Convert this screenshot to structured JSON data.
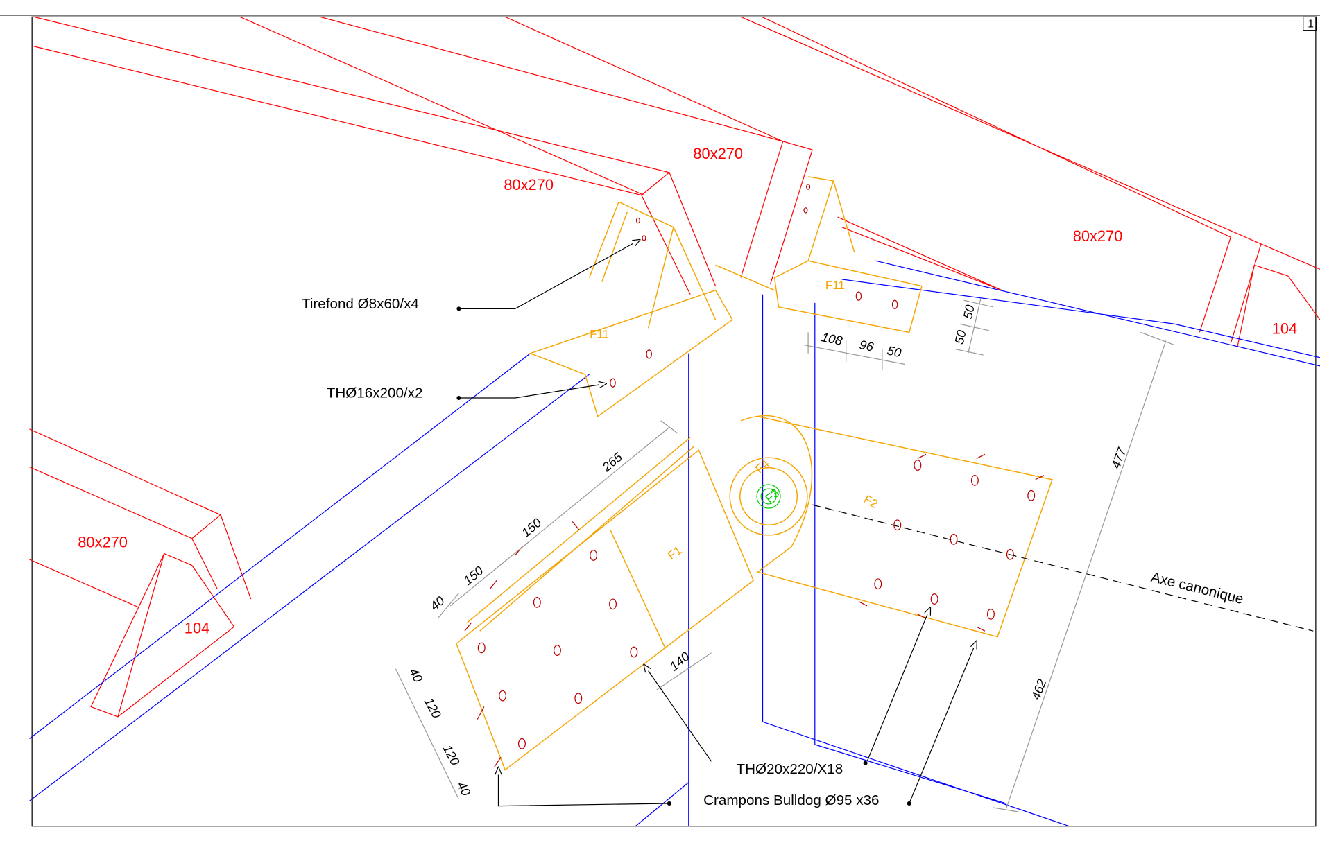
{
  "sheet_number": "1",
  "section_labels": [
    "80x270",
    "80x270",
    "80x270",
    "80x270",
    "104",
    "104"
  ],
  "parts": [
    "F11",
    "F11",
    "F1",
    "F2",
    "F3",
    "F4"
  ],
  "annotations": [
    "Tirefond Ø8x60/x4",
    "THØ16x200/x2",
    "THØ20x220/X18",
    "Crampons Bulldog Ø95 x36",
    "Axe canonique"
  ],
  "dimensions": [
    108,
    96,
    50,
    50,
    50,
    477,
    462,
    265,
    150,
    150,
    40,
    140,
    40,
    120,
    120,
    40
  ]
}
